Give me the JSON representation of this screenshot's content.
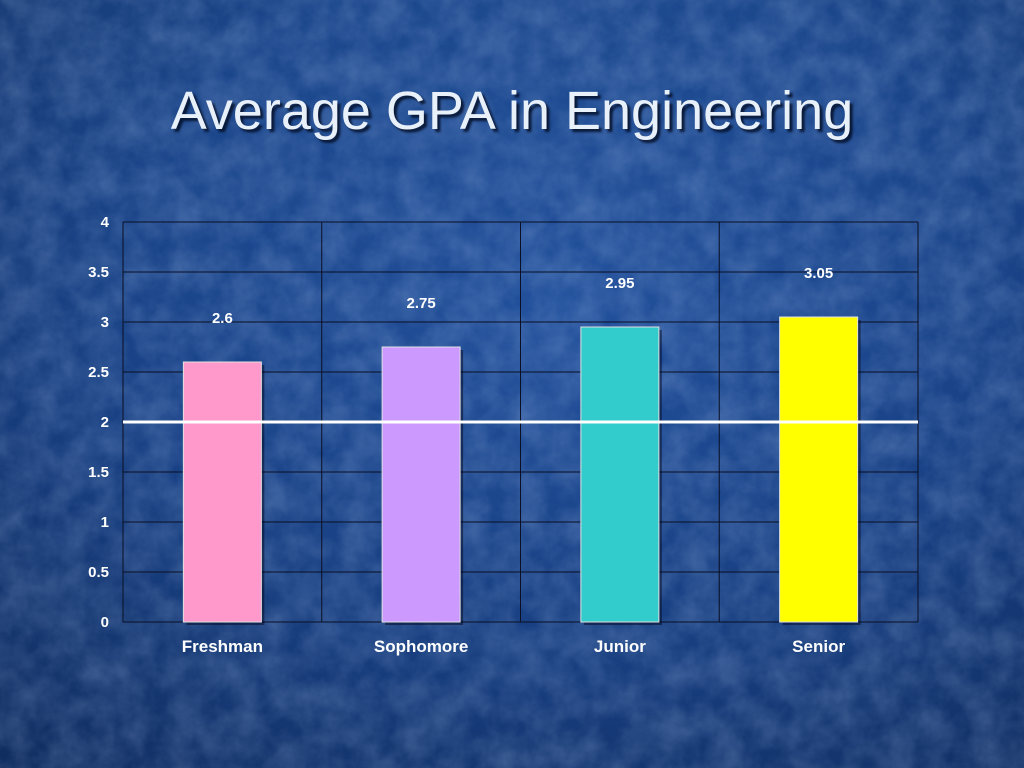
{
  "slide": {
    "title": "Average GPA in Engineering"
  },
  "colors": {
    "background": "#1a4489",
    "gridline": "#0a0f24",
    "threshold_line": "#ffffff",
    "label_text": "#ffffff"
  },
  "chart_data": {
    "type": "bar",
    "title": "",
    "xlabel": "",
    "ylabel": "",
    "categories": [
      "Freshman",
      "Sophomore",
      "Junior",
      "Senior"
    ],
    "values": [
      2.6,
      2.75,
      2.95,
      3.05
    ],
    "data_labels": [
      "2.6",
      "2.75",
      "2.95",
      "3.05"
    ],
    "bar_colors": [
      "#ff99cc",
      "#cc99ff",
      "#33cccc",
      "#ffff00"
    ],
    "ylim": [
      0,
      4
    ],
    "yticks": [
      0,
      0.5,
      1,
      1.5,
      2,
      2.5,
      3,
      3.5,
      4
    ],
    "ytick_labels": [
      "0",
      "0.5",
      "1",
      "1.5",
      "2",
      "2.5",
      "3",
      "3.5",
      "4"
    ],
    "reference_line": {
      "y": 2
    },
    "grid": true,
    "legend": "none"
  }
}
